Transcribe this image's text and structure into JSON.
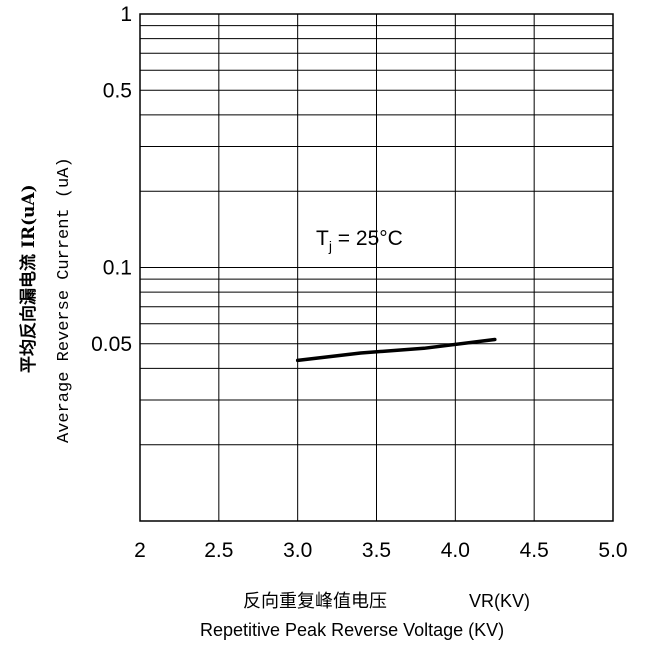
{
  "chart_data": {
    "type": "line",
    "xscale": "linear",
    "yscale": "log",
    "xlim": [
      2,
      5
    ],
    "ylim": [
      0.01,
      1
    ],
    "xticks": [
      "2",
      "2.5",
      "3.0",
      "3.5",
      "4.0",
      "4.5",
      "5.0"
    ],
    "yticks": [
      {
        "value": 1,
        "label": "1"
      },
      {
        "value": 0.5,
        "label": "0.5"
      },
      {
        "value": 0.1,
        "label": "0.1"
      },
      {
        "value": 0.05,
        "label": "0.05"
      }
    ],
    "grid": true,
    "series": [
      {
        "x": [
          3.0,
          3.4,
          3.8,
          4.25
        ],
        "y": [
          0.043,
          0.046,
          0.048,
          0.052
        ]
      }
    ],
    "ylabel_cn": "平均反向漏电流  IR(uA)",
    "ylabel_en": "Average Reverse  Current  (uA)",
    "xlabel_cn": "反向重复峰值电压",
    "xlabel_unit": "VR(KV)",
    "xlabel_en": "Repetitive Peak Reverse Voltage (KV)",
    "annotation": {
      "prefix": "T",
      "sub": "j",
      "suffix": " = 25°C"
    }
  }
}
